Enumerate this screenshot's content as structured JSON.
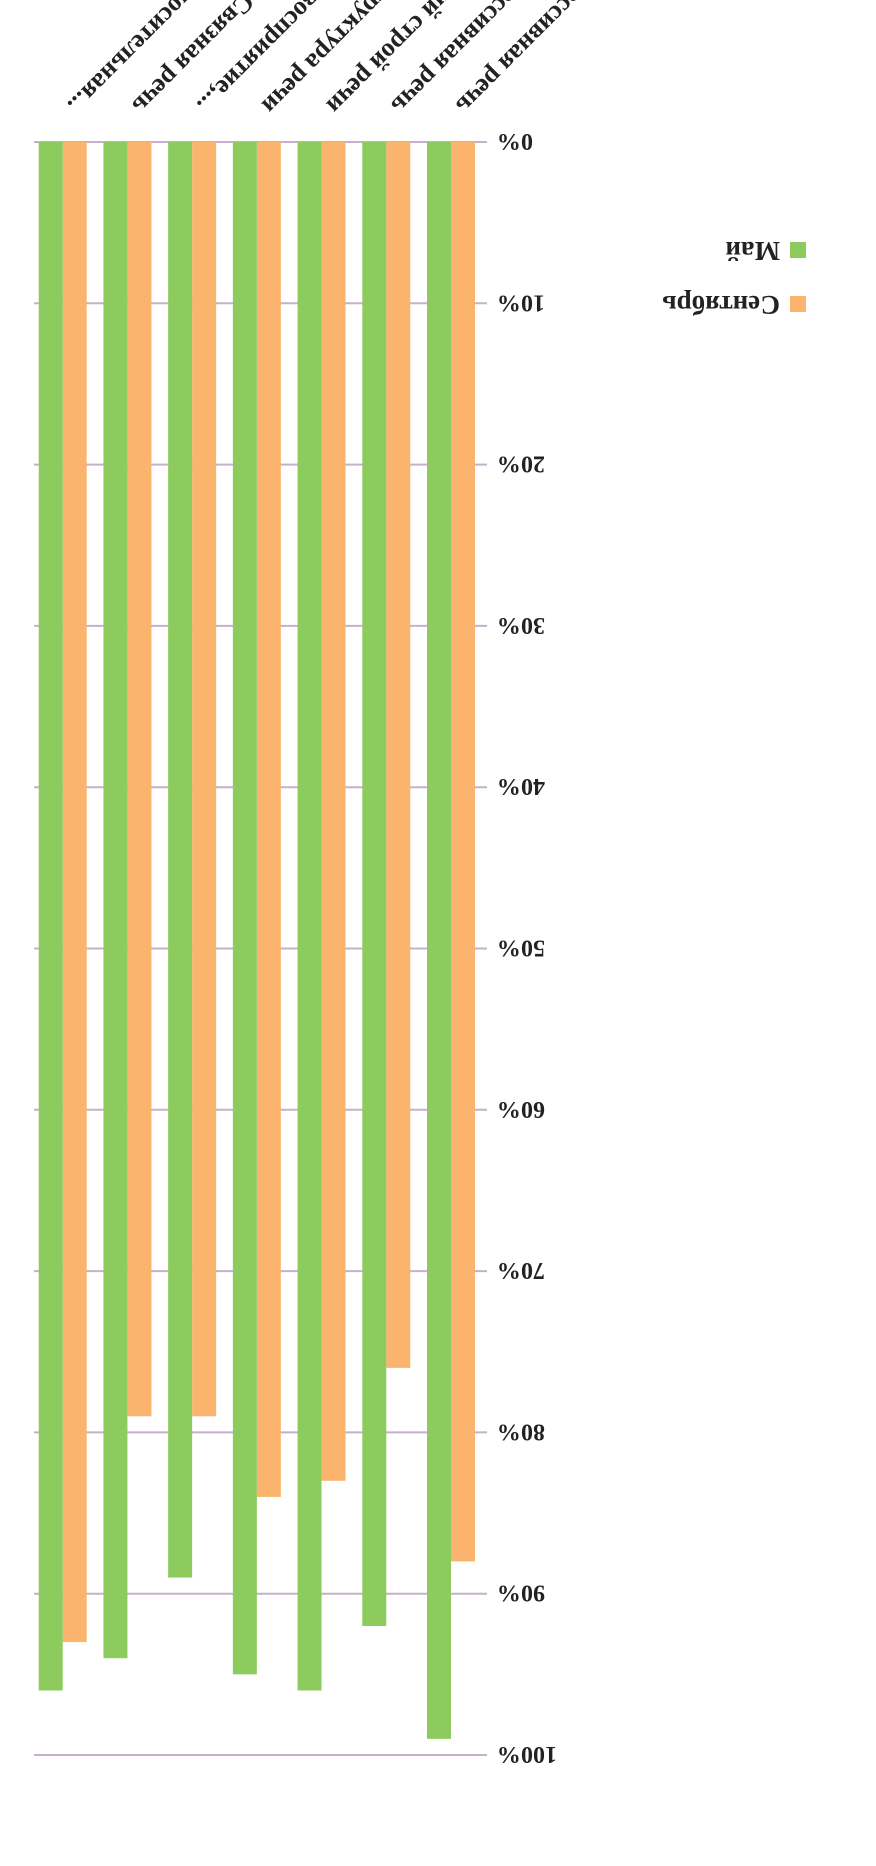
{
  "chart_data": {
    "type": "bar",
    "orientation": "vertical, page rotated 180 degrees",
    "categories": [
      "Импрессивная речь",
      "Экспрессивная речь",
      "Грамматический строй речи",
      "Слоговая структура речи",
      "Слуховое восприятие,...",
      "Связная речь",
      "Звукопроизносительная..."
    ],
    "series": [
      {
        "name": "Сентябрь",
        "color": "#FBB46E",
        "values": [
          88,
          76,
          83,
          84,
          79,
          79,
          93
        ]
      },
      {
        "name": "Май",
        "color": "#8DCB5E",
        "values": [
          99,
          92,
          96,
          95,
          89,
          94,
          96
        ]
      }
    ],
    "ylim": [
      0,
      100
    ],
    "yticks": [
      "0%",
      "10%",
      "20%",
      "30%",
      "40%",
      "50%",
      "60%",
      "70%",
      "80%",
      "90%",
      "100%"
    ],
    "grid": true,
    "grid_color": "#C8AECF",
    "legend_position": "top-right"
  }
}
